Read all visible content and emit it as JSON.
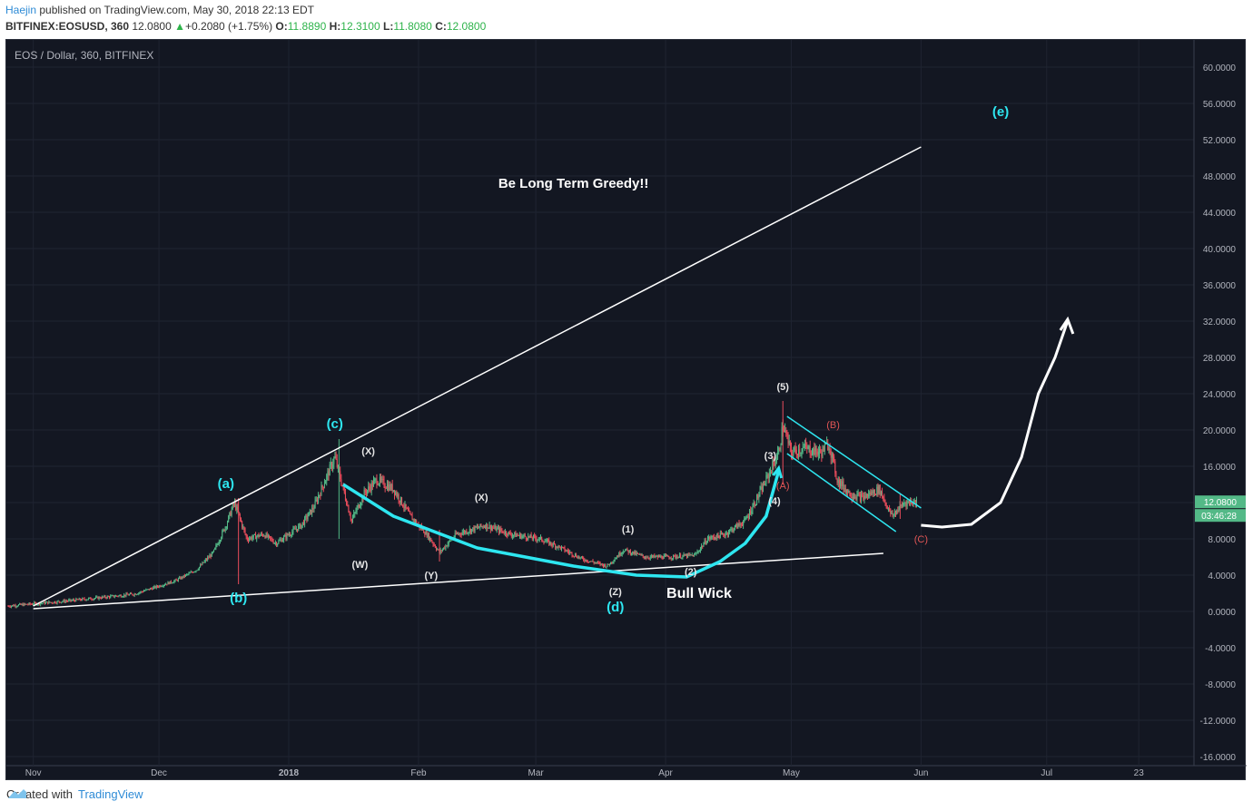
{
  "header": {
    "author": "Haejin",
    "published": " published on TradingView.com, May 30, 2018 22:13 EDT",
    "symbol": "BITFINEX:EOSUSD, 360",
    "last": "12.0800",
    "change": "+0.2080 (+1.75%)",
    "o_label": "O:",
    "o_value": "11.8890",
    "h_label": "H:",
    "h_value": "12.3100",
    "l_label": "L:",
    "l_value": "11.8080",
    "c_label": "C:",
    "c_value": "12.0800"
  },
  "footer": {
    "created_with": "Created with",
    "brand": "TradingView"
  },
  "colors": {
    "background": "#131722",
    "up": "#53b987",
    "down": "#eb4d5c",
    "cyan": "#2ee6f0",
    "annotation_red": "#e05555",
    "price_tag": "#53b987"
  },
  "chart_data": {
    "type": "candlestick",
    "title": "EOS / Dollar, 360, BITFINEX",
    "y_ticks": [
      "60.0000",
      "56.0000",
      "52.0000",
      "48.0000",
      "44.0000",
      "40.0000",
      "36.0000",
      "32.0000",
      "28.0000",
      "24.0000",
      "20.0000",
      "16.0000",
      "12.0000",
      "8.0000",
      "4.0000",
      "0.0000",
      "-4.0000",
      "-8.0000",
      "-12.0000",
      "-16.0000"
    ],
    "ylim": [
      -17.5,
      62
    ],
    "x_ticks": [
      "Nov",
      "Dec",
      "2018",
      "Feb",
      "Mar",
      "Apr",
      "May",
      "Jun",
      "Jul",
      "23"
    ],
    "last_price_tag": "12.0800",
    "countdown_tag": "03:46:28",
    "price_path": [
      {
        "date": "2017-10-26",
        "close": 0.6
      },
      {
        "date": "2017-11-10",
        "close": 1.2
      },
      {
        "date": "2017-11-25",
        "close": 1.9
      },
      {
        "date": "2017-12-05",
        "close": 3.4
      },
      {
        "date": "2017-12-10",
        "close": 4.6
      },
      {
        "date": "2017-12-14",
        "close": 6.5
      },
      {
        "date": "2017-12-17",
        "close": 9.5
      },
      {
        "date": "2017-12-19",
        "close": 12.0
      },
      {
        "date": "2017-12-22",
        "close": 8.0
      },
      {
        "date": "2017-12-26",
        "close": 8.5
      },
      {
        "date": "2017-12-29",
        "close": 7.5
      },
      {
        "date": "2018-01-04",
        "close": 9.5
      },
      {
        "date": "2018-01-07",
        "close": 11.5
      },
      {
        "date": "2018-01-12",
        "close": 17.0
      },
      {
        "date": "2018-01-16",
        "close": 10.0
      },
      {
        "date": "2018-01-19",
        "close": 13.0
      },
      {
        "date": "2018-01-22",
        "close": 14.5
      },
      {
        "date": "2018-01-26",
        "close": 13.5
      },
      {
        "date": "2018-01-30",
        "close": 10.5
      },
      {
        "date": "2018-02-03",
        "close": 8.5
      },
      {
        "date": "2018-02-06",
        "close": 6.5
      },
      {
        "date": "2018-02-10",
        "close": 8.5
      },
      {
        "date": "2018-02-17",
        "close": 9.5
      },
      {
        "date": "2018-02-23",
        "close": 8.5
      },
      {
        "date": "2018-03-02",
        "close": 8.0
      },
      {
        "date": "2018-03-07",
        "close": 7.0
      },
      {
        "date": "2018-03-12",
        "close": 5.8
      },
      {
        "date": "2018-03-18",
        "close": 5.0
      },
      {
        "date": "2018-03-22",
        "close": 6.8
      },
      {
        "date": "2018-03-27",
        "close": 6.0
      },
      {
        "date": "2018-04-02",
        "close": 6.0
      },
      {
        "date": "2018-04-08",
        "close": 6.2
      },
      {
        "date": "2018-04-11",
        "close": 8.0
      },
      {
        "date": "2018-04-15",
        "close": 8.5
      },
      {
        "date": "2018-04-20",
        "close": 10.0
      },
      {
        "date": "2018-04-24",
        "close": 13.5
      },
      {
        "date": "2018-04-28",
        "close": 17.5
      },
      {
        "date": "2018-04-29",
        "close": 20.5
      },
      {
        "date": "2018-05-01",
        "close": 17.5
      },
      {
        "date": "2018-05-04",
        "close": 18.0
      },
      {
        "date": "2018-05-08",
        "close": 17.5
      },
      {
        "date": "2018-05-10",
        "close": 18.5
      },
      {
        "date": "2018-05-12",
        "close": 14.5
      },
      {
        "date": "2018-05-15",
        "close": 13.0
      },
      {
        "date": "2018-05-18",
        "close": 12.5
      },
      {
        "date": "2018-05-22",
        "close": 13.5
      },
      {
        "date": "2018-05-25",
        "close": 10.5
      },
      {
        "date": "2018-05-28",
        "close": 12.0
      },
      {
        "date": "2018-05-31",
        "close": 12.08
      }
    ],
    "annotations": {
      "title_note": "Be Long Term Greedy!!",
      "bull_wick": "Bull Wick",
      "cyan_labels": [
        "(a)",
        "(b)",
        "(c)",
        "(d)",
        "(e)"
      ],
      "white_labels": [
        "(X)",
        "(W)",
        "(Y)",
        "(X)",
        "(Z)",
        "(1)",
        "(2)",
        "(3)",
        "(4)",
        "(5)"
      ],
      "red_labels": [
        "(A)",
        "(B)",
        "(C)"
      ]
    }
  }
}
